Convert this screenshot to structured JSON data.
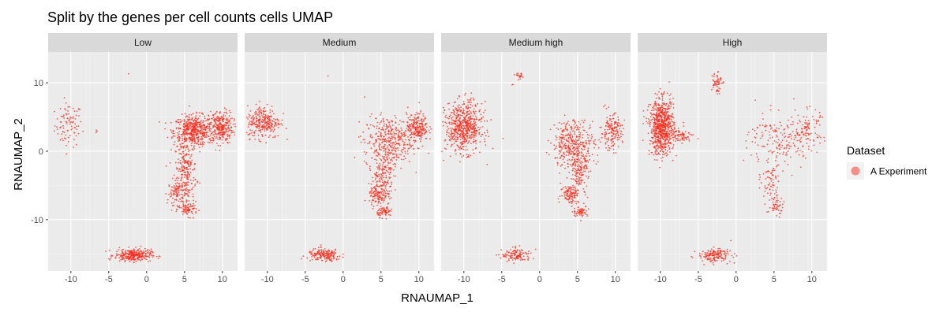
{
  "chart_data": {
    "type": "scatter",
    "title": "Split by the genes per cell counts cells UMAP",
    "xlabel": "RNAUMAP_1",
    "ylabel": "RNAUMAP_2",
    "xlim": [
      -13,
      12
    ],
    "ylim": [
      -17.5,
      14.5
    ],
    "x_ticks": [
      -10,
      -5,
      0,
      5,
      10
    ],
    "x_tick_labels": [
      "-10",
      "-5",
      "0",
      "5",
      "10"
    ],
    "y_ticks": [
      10,
      0,
      -10
    ],
    "y_tick_labels": [
      "10",
      "0",
      "-10"
    ],
    "grid": true,
    "point_color": "#FF2A1A",
    "panel_background": "#EBEBEB",
    "strip_background": "#D9D9D9",
    "legend": {
      "title": "Dataset",
      "position": "right",
      "entries": [
        {
          "name": "A Experiment",
          "color": "#F8766D"
        }
      ]
    },
    "panels": [
      {
        "label": "Low",
        "clusters": [
          {
            "cx": -10.3,
            "cy": 3.8,
            "sx": 0.9,
            "sy": 1.6,
            "n": 90
          },
          {
            "cx": 6.2,
            "cy": 3.0,
            "sx": 1.3,
            "sy": 1.1,
            "n": 520
          },
          {
            "cx": 9.8,
            "cy": 3.5,
            "sx": 0.8,
            "sy": 1.2,
            "n": 280
          },
          {
            "cx": 5.2,
            "cy": -2.5,
            "sx": 0.7,
            "sy": 2.0,
            "n": 200
          },
          {
            "cx": 4.2,
            "cy": -6.0,
            "sx": 0.7,
            "sy": 0.9,
            "n": 120
          },
          {
            "cx": 5.5,
            "cy": -8.5,
            "sx": 0.6,
            "sy": 0.5,
            "n": 80
          },
          {
            "cx": -1.8,
            "cy": -15.2,
            "sx": 1.2,
            "sy": 0.45,
            "n": 300
          },
          {
            "cx": -6.5,
            "cy": 2.6,
            "sx": 0.3,
            "sy": 0.3,
            "n": 3
          },
          {
            "cx": -2.4,
            "cy": 11.3,
            "sx": 0.05,
            "sy": 0.05,
            "n": 1
          }
        ]
      },
      {
        "label": "Medium",
        "clusters": [
          {
            "cx": -10.5,
            "cy": 4.3,
            "sx": 1.1,
            "sy": 1.2,
            "n": 280
          },
          {
            "cx": 6.0,
            "cy": 1.5,
            "sx": 1.6,
            "sy": 1.8,
            "n": 380
          },
          {
            "cx": 9.8,
            "cy": 3.5,
            "sx": 0.7,
            "sy": 1.0,
            "n": 220
          },
          {
            "cx": 5.2,
            "cy": -3.5,
            "sx": 0.7,
            "sy": 1.8,
            "n": 160
          },
          {
            "cx": 4.6,
            "cy": -6.5,
            "sx": 0.6,
            "sy": 0.8,
            "n": 110
          },
          {
            "cx": 5.5,
            "cy": -8.8,
            "sx": 0.5,
            "sy": 0.4,
            "n": 70
          },
          {
            "cx": -2.5,
            "cy": -15.2,
            "sx": 1.1,
            "sy": 0.45,
            "n": 180
          },
          {
            "cx": -2.0,
            "cy": 11.0,
            "sx": 0.05,
            "sy": 0.05,
            "n": 1
          }
        ]
      },
      {
        "label": "Medium high",
        "clusters": [
          {
            "cx": -10.0,
            "cy": 3.5,
            "sx": 1.2,
            "sy": 1.8,
            "n": 620
          },
          {
            "cx": 4.5,
            "cy": 1.0,
            "sx": 1.4,
            "sy": 1.8,
            "n": 380
          },
          {
            "cx": 9.5,
            "cy": 2.8,
            "sx": 0.7,
            "sy": 1.3,
            "n": 170
          },
          {
            "cx": 5.2,
            "cy": -3.5,
            "sx": 0.6,
            "sy": 1.6,
            "n": 130
          },
          {
            "cx": 4.0,
            "cy": -6.2,
            "sx": 0.6,
            "sy": 0.7,
            "n": 100
          },
          {
            "cx": 5.4,
            "cy": -8.8,
            "sx": 0.5,
            "sy": 0.4,
            "n": 60
          },
          {
            "cx": -3.0,
            "cy": -15.2,
            "sx": 1.0,
            "sy": 0.5,
            "n": 120
          },
          {
            "cx": -2.6,
            "cy": 11.0,
            "sx": 0.25,
            "sy": 0.2,
            "n": 22
          },
          {
            "cx": -3.6,
            "cy": 9.7,
            "sx": 0.1,
            "sy": 0.15,
            "n": 2
          }
        ]
      },
      {
        "label": "High",
        "clusters": [
          {
            "cx": -9.8,
            "cy": 3.5,
            "sx": 0.8,
            "sy": 2.0,
            "n": 750
          },
          {
            "cx": -7.2,
            "cy": 2.3,
            "sx": 0.8,
            "sy": 0.4,
            "n": 70
          },
          {
            "cx": -2.6,
            "cy": 10.2,
            "sx": 0.35,
            "sy": 0.9,
            "n": 60
          },
          {
            "cx": 6.0,
            "cy": 1.5,
            "sx": 2.2,
            "sy": 2.0,
            "n": 180
          },
          {
            "cx": 9.5,
            "cy": 3.5,
            "sx": 0.8,
            "sy": 1.3,
            "n": 80
          },
          {
            "cx": 4.5,
            "cy": -4.5,
            "sx": 0.6,
            "sy": 1.8,
            "n": 70
          },
          {
            "cx": 5.3,
            "cy": -8.0,
            "sx": 0.5,
            "sy": 0.7,
            "n": 50
          },
          {
            "cx": -2.8,
            "cy": -15.2,
            "sx": 1.1,
            "sy": 0.5,
            "n": 160
          }
        ]
      }
    ]
  }
}
